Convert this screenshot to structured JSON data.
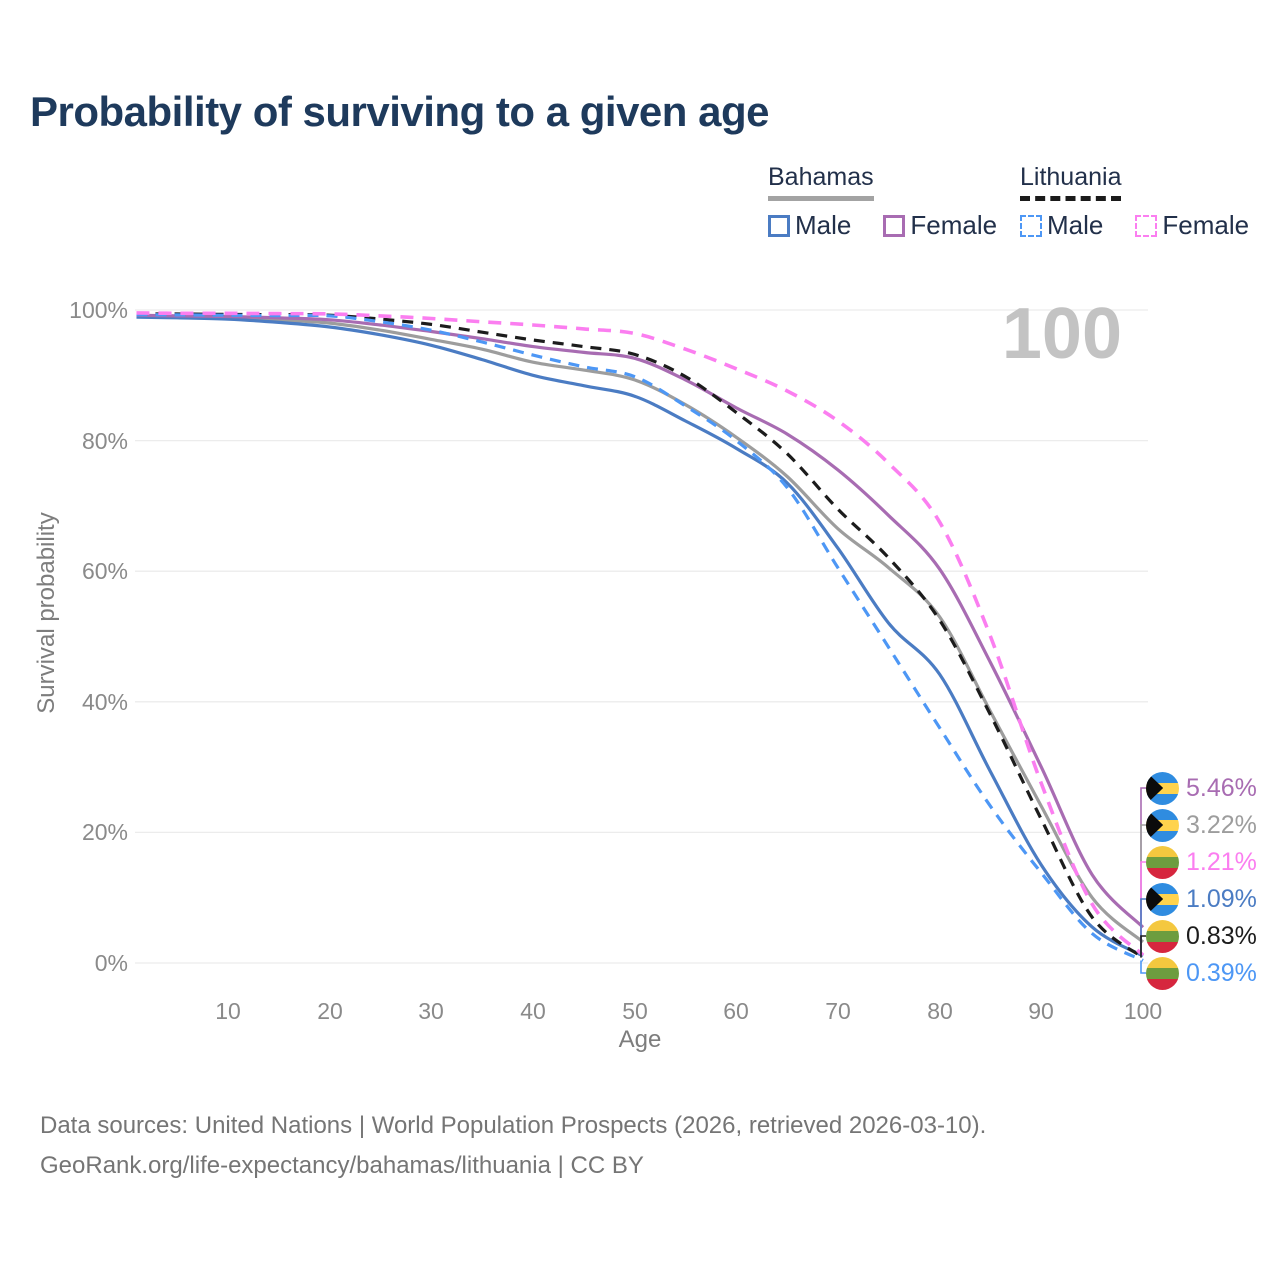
{
  "title": "Probability of surviving to a given age",
  "watermark_age": "100",
  "legend": {
    "groups": [
      {
        "label": "Bahamas",
        "style": "solid",
        "underline_color": "#a3a3a3",
        "items": [
          {
            "label": "Male",
            "color": "#4b7cc3"
          },
          {
            "label": "Female",
            "color": "#a86cb2"
          }
        ]
      },
      {
        "label": "Lithuania",
        "style": "dashed",
        "underline_color": "#1b1b1b",
        "items": [
          {
            "label": "Male",
            "color": "#4d97f5"
          },
          {
            "label": "Female",
            "color": "#fb7ef0"
          }
        ]
      }
    ]
  },
  "axes": {
    "x": {
      "title": "Age",
      "ticks": [
        "10",
        "20",
        "30",
        "40",
        "50",
        "60",
        "70",
        "80",
        "90",
        "100"
      ]
    },
    "y": {
      "title": "Survival probability",
      "ticks": [
        "0%",
        "20%",
        "40%",
        "60%",
        "80%",
        "100%"
      ]
    }
  },
  "chart_data": {
    "type": "line",
    "title": "Probability of surviving to a given age",
    "xlabel": "Age",
    "ylabel": "Survival probability",
    "x_range": [
      1,
      100
    ],
    "y_range_pct": [
      0,
      100
    ],
    "grid": "horizontal only, ticks every 20%",
    "legend_position": "top-right",
    "ages": [
      1,
      5,
      10,
      15,
      20,
      25,
      30,
      35,
      40,
      45,
      50,
      55,
      60,
      65,
      70,
      75,
      80,
      85,
      90,
      95,
      100
    ],
    "series": [
      {
        "id": "bhs_t",
        "label": "Bahamas",
        "country": "Bahamas",
        "sex": "all",
        "style": "solid",
        "color": "#9d9d9d",
        "values": [
          99.05,
          98.95,
          98.8,
          98.45,
          98.0,
          96.9,
          95.5,
          94.0,
          92.0,
          90.8,
          89.3,
          85.5,
          80.5,
          74.5,
          66.5,
          60.5,
          53.0,
          38.5,
          24.0,
          10.0,
          3.22
        ]
      },
      {
        "id": "bhs_m",
        "label": "Bahamas Male",
        "country": "Bahamas",
        "sex": "male",
        "style": "solid",
        "color": "#4b7cc3",
        "values": [
          98.9,
          98.8,
          98.6,
          98.1,
          97.4,
          96.2,
          94.6,
          92.4,
          90.0,
          88.4,
          86.8,
          83.0,
          78.8,
          73.5,
          63.5,
          52.0,
          44.2,
          29.3,
          15.0,
          5.5,
          1.09
        ]
      },
      {
        "id": "bhs_f",
        "label": "Bahamas Female",
        "country": "Bahamas",
        "sex": "female",
        "style": "solid",
        "color": "#a86cb2",
        "values": [
          99.2,
          99.1,
          99.0,
          98.8,
          98.5,
          97.7,
          96.7,
          95.6,
          94.4,
          93.5,
          92.6,
          89.3,
          85.0,
          81.0,
          75.5,
          68.5,
          60.3,
          46.0,
          30.0,
          13.5,
          5.46
        ]
      },
      {
        "id": "ltu_t",
        "label": "Lithuania",
        "country": "Lithuania",
        "sex": "all",
        "style": "dashed",
        "color": "#1c1c1c",
        "values": [
          99.4,
          99.38,
          99.33,
          99.28,
          99.2,
          98.6,
          97.8,
          96.6,
          95.4,
          94.4,
          93.2,
          89.8,
          84.3,
          78.0,
          69.5,
          62.0,
          52.5,
          38.0,
          22.0,
          7.0,
          0.83
        ]
      },
      {
        "id": "ltu_m",
        "label": "Lithuania Male",
        "country": "Lithuania",
        "sex": "male",
        "style": "dashed",
        "color": "#4d97f5",
        "values": [
          99.3,
          99.25,
          99.2,
          99.15,
          99.1,
          98.2,
          96.9,
          95.1,
          93.1,
          91.3,
          89.8,
          85.3,
          80.0,
          72.8,
          60.5,
          48.3,
          36.0,
          24.0,
          13.8,
          4.5,
          0.39
        ]
      },
      {
        "id": "ltu_f",
        "label": "Lithuania Female",
        "country": "Lithuania",
        "sex": "female",
        "style": "dashed",
        "color": "#fb7ef0",
        "values": [
          99.55,
          99.5,
          99.5,
          99.45,
          99.4,
          99.1,
          98.7,
          98.2,
          97.7,
          97.1,
          96.4,
          94.0,
          91.0,
          87.6,
          83.0,
          76.5,
          67.5,
          50.0,
          27.5,
          9.0,
          1.21
        ]
      }
    ],
    "end_values_at_age_100": {
      "bhs_f": "5.46%",
      "bhs_t": "3.22%",
      "ltu_f": "1.21%",
      "bhs_m": "1.09%",
      "ltu_t": "0.83%",
      "ltu_m": "0.39%"
    }
  },
  "end_labels": [
    {
      "series": "bhs_f",
      "flag": "bhs",
      "flag_name": "flag-bahamas-icon",
      "value": "5.46%"
    },
    {
      "series": "bhs_t",
      "flag": "bhs",
      "flag_name": "flag-bahamas-icon",
      "value": "3.22%"
    },
    {
      "series": "ltu_f",
      "flag": "ltu",
      "flag_name": "flag-lithuania-icon",
      "value": "1.21%"
    },
    {
      "series": "bhs_m",
      "flag": "bhs",
      "flag_name": "flag-bahamas-icon",
      "value": "1.09%"
    },
    {
      "series": "ltu_t",
      "flag": "ltu",
      "flag_name": "flag-lithuania-icon",
      "value": "0.83%"
    },
    {
      "series": "ltu_m",
      "flag": "ltu",
      "flag_name": "flag-lithuania-icon",
      "value": "0.39%"
    }
  ],
  "footer": {
    "line1": "Data sources: United Nations | World Population Prospects (2026, retrieved 2026-03-10).",
    "line2": "GeoRank.org/life-expectancy/bahamas/lithuania | CC BY"
  }
}
